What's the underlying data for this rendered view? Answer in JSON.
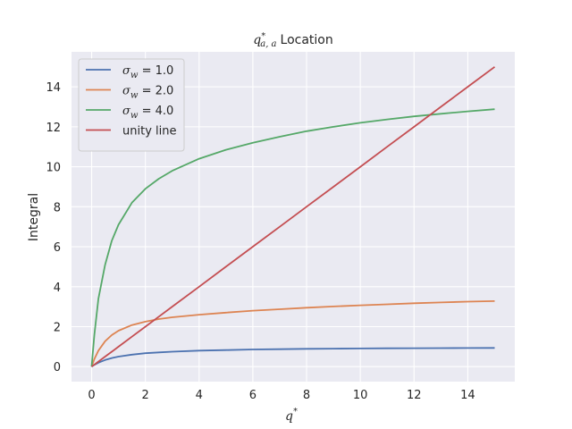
{
  "chart_data": {
    "type": "line",
    "title": "q*a,a Location",
    "title_parts": {
      "symbol": "q",
      "sup": "*",
      "sub": "a, a",
      "text": "Location"
    },
    "xlabel": "q*",
    "xlabel_parts": {
      "symbol": "q",
      "sup": "*"
    },
    "ylabel": "Integral",
    "xlim": [
      -0.75,
      15.75
    ],
    "ylim": [
      -0.75,
      15.75
    ],
    "xticks": [
      0,
      2,
      4,
      6,
      8,
      10,
      12,
      14
    ],
    "yticks": [
      0,
      2,
      4,
      6,
      8,
      10,
      12,
      14
    ],
    "grid": true,
    "legend_position": "upper left",
    "x": [
      0,
      0.1,
      0.25,
      0.5,
      0.75,
      1,
      1.5,
      2,
      2.5,
      3,
      4,
      5,
      6,
      7,
      8,
      9,
      10,
      11,
      12,
      13,
      14,
      15
    ],
    "series": [
      {
        "name": "σw = 1.0",
        "legend_symbol": "σ",
        "legend_sub": "w",
        "legend_value": " = 1.0",
        "color": "#4c72b0",
        "values": [
          0,
          0.09,
          0.2,
          0.33,
          0.43,
          0.5,
          0.6,
          0.67,
          0.71,
          0.75,
          0.8,
          0.83,
          0.86,
          0.875,
          0.89,
          0.9,
          0.91,
          0.917,
          0.923,
          0.929,
          0.933,
          0.938
        ]
      },
      {
        "name": "σw = 2.0",
        "legend_symbol": "σ",
        "legend_sub": "w",
        "legend_value": " = 2.0",
        "color": "#dd8452",
        "values": [
          0,
          0.38,
          0.8,
          1.27,
          1.58,
          1.8,
          2.08,
          2.25,
          2.38,
          2.47,
          2.6,
          2.7,
          2.8,
          2.87,
          2.95,
          3.01,
          3.07,
          3.12,
          3.17,
          3.21,
          3.25,
          3.28
        ]
      },
      {
        "name": "σw = 4.0",
        "legend_symbol": "σ",
        "legend_sub": "w",
        "legend_value": " = 4.0",
        "color": "#55a868",
        "values": [
          0,
          1.6,
          3.4,
          5.1,
          6.3,
          7.1,
          8.2,
          8.9,
          9.4,
          9.8,
          10.4,
          10.85,
          11.2,
          11.5,
          11.78,
          12.0,
          12.2,
          12.37,
          12.52,
          12.65,
          12.77,
          12.88
        ]
      },
      {
        "name": "unity line",
        "legend_value": "unity line",
        "color": "#c44e52",
        "values": [
          0,
          0.1,
          0.25,
          0.5,
          0.75,
          1,
          1.5,
          2,
          2.5,
          3,
          4,
          5,
          6,
          7,
          8,
          9,
          10,
          11,
          12,
          13,
          14,
          15
        ]
      }
    ]
  }
}
